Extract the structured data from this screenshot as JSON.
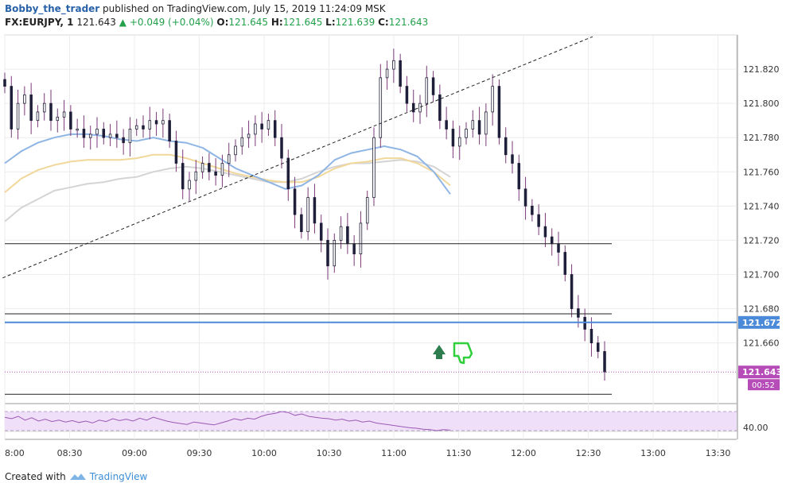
{
  "header": {
    "author": "Bobby_the_trader",
    "published": "published on TradingView.com, July 15, 2019 11:24:09 MSK",
    "symbol": "FX:EURJPY, 1",
    "last": "121.643",
    "change": "+0.049 (+0.04%)",
    "o_label": "O:",
    "o_value": "121.645",
    "h_label": "H:",
    "h_value": "121.645",
    "l_label": "L:",
    "l_value": "121.639",
    "c_label": "C:",
    "c_value": "121.643"
  },
  "footer": {
    "created_with": "Created with",
    "brand": "TradingView"
  },
  "colors": {
    "candle": "#1f1f3a",
    "candle_wick": "#7a3a78",
    "ma_blue": "#8fb5e4",
    "ma_yellow": "#f1d79a",
    "ma_gray": "#d4d4d4",
    "trend_line": "#222222",
    "blue_line": "#4a8ad8",
    "rsi_line": "#9b59b6",
    "rsi_band": "#f0dff8",
    "price_label_bg": "#b54cb8",
    "current_bg": "#4a8ad8",
    "arrow": "#2e7d4f",
    "thumb": "#2fcf3c"
  },
  "chart_data": {
    "type": "candlestick",
    "symbol": "FX:EURJPY",
    "timeframe": "1",
    "y_axis": {
      "range": [
        121.625,
        121.84
      ],
      "ticks": [
        "121.820",
        "121.800",
        "121.780",
        "121.760",
        "121.740",
        "121.720",
        "121.700",
        "121.680",
        "121.660"
      ]
    },
    "x_axis": {
      "ticks": [
        "8:00",
        "08:30",
        "09:00",
        "09:30",
        "10:00",
        "10:30",
        "11:00",
        "11:30",
        "12:00",
        "12:30",
        "13:00",
        "13:30"
      ],
      "range_minutes_from_08_00": [
        0,
        335
      ]
    },
    "price_labels": {
      "blue_line": "121.672",
      "last_price": "121.643",
      "countdown": "00:52"
    },
    "horizontal_lines": [
      121.718,
      121.677,
      121.672,
      121.63
    ],
    "last_price_line": 121.643,
    "trend_line": {
      "from": [
        "07:59",
        121.698
      ],
      "to": [
        "12:32",
        121.839
      ]
    },
    "candles_close": [
      121.81,
      121.785,
      121.8,
      121.805,
      121.79,
      121.795,
      121.8,
      121.79,
      121.792,
      121.795,
      121.785,
      121.785,
      121.78,
      121.782,
      121.785,
      121.78,
      121.782,
      121.78,
      121.777,
      121.785,
      121.787,
      121.785,
      121.79,
      121.788,
      121.79,
      121.778,
      121.765,
      121.75,
      121.755,
      121.76,
      121.765,
      121.76,
      121.758,
      121.765,
      121.77,
      121.775,
      121.78,
      121.782,
      121.788,
      121.785,
      121.79,
      121.78,
      121.768,
      121.75,
      121.735,
      121.725,
      121.745,
      121.73,
      121.72,
      121.705,
      121.72,
      121.728,
      121.718,
      121.712,
      121.73,
      121.745,
      121.78,
      121.815,
      121.82,
      121.825,
      121.81,
      121.8,
      121.795,
      121.8,
      121.815,
      121.805,
      121.79,
      121.785,
      121.775,
      121.78,
      121.785,
      121.79,
      121.782,
      121.795,
      121.81,
      121.78,
      121.77,
      121.765,
      121.75,
      121.74,
      121.735,
      121.728,
      121.722,
      121.718,
      121.713,
      121.7,
      121.68,
      121.675,
      121.668,
      121.66,
      121.655,
      121.643
    ],
    "moving_averages": {
      "blue": [
        121.765,
        121.772,
        121.777,
        121.78,
        121.782,
        121.782,
        121.781,
        121.779,
        121.778,
        121.78,
        121.778,
        121.777,
        121.774,
        121.768,
        121.762,
        121.758,
        121.754,
        121.75,
        121.752,
        121.758,
        121.767,
        121.771,
        121.773,
        121.775,
        121.773,
        121.769,
        121.76,
        121.747
      ],
      "yellow": [
        121.748,
        121.756,
        121.761,
        121.764,
        121.766,
        121.767,
        121.767,
        121.767,
        121.768,
        121.77,
        121.77,
        121.768,
        121.765,
        121.762,
        121.759,
        121.757,
        121.755,
        121.754,
        121.754,
        121.757,
        121.762,
        121.765,
        121.766,
        121.768,
        121.768,
        121.765,
        121.76,
        121.752
      ],
      "gray": [
        121.731,
        121.739,
        121.744,
        121.749,
        121.751,
        121.753,
        121.754,
        121.756,
        121.757,
        121.76,
        121.762,
        121.763,
        121.762,
        121.76,
        121.758,
        121.756,
        121.754,
        121.754,
        121.756,
        121.76,
        121.763,
        121.765,
        121.765,
        121.766,
        121.767,
        121.766,
        121.763,
        121.757
      ]
    },
    "rsi": {
      "label": "40.00",
      "band": [
        30,
        70
      ],
      "values": [
        58,
        55,
        60,
        52,
        57,
        50,
        54,
        49,
        52,
        48,
        51,
        47,
        50,
        46,
        52,
        49,
        55,
        51,
        54,
        50,
        56,
        52,
        58,
        54,
        50,
        47,
        45,
        43,
        48,
        46,
        44,
        42,
        46,
        50,
        55,
        52,
        56,
        54,
        60,
        64,
        66,
        70,
        68,
        62,
        65,
        60,
        58,
        56,
        55,
        52,
        54,
        50,
        52,
        48,
        50,
        46,
        44,
        42,
        40,
        38,
        36,
        35,
        33,
        32,
        30,
        32,
        31
      ]
    }
  }
}
